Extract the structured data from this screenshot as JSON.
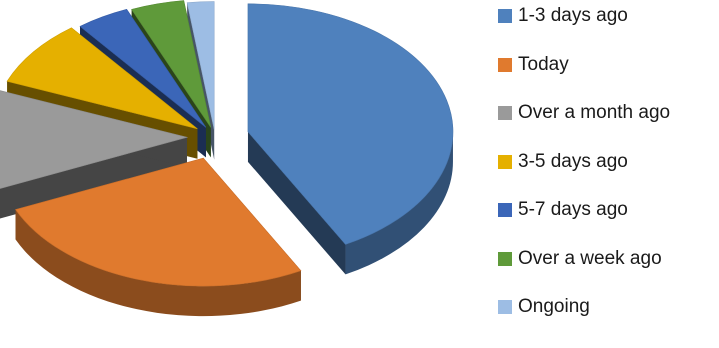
{
  "chart_data": {
    "type": "pie",
    "style": "3d-exploded",
    "categories": [
      "1-3 days ago",
      "Today",
      "Over a month ago",
      "3-5 days ago",
      "5-7 days ago",
      "Over a week ago",
      "Ongoing"
    ],
    "values": [
      40,
      25,
      12,
      8,
      4,
      4,
      2
    ],
    "unit": "percent",
    "colors": [
      "#4f81bd",
      "#e07a2e",
      "#9a9a9a",
      "#e5b000",
      "#3b66b8",
      "#5f9a3a",
      "#9dbde4"
    ],
    "legend_placement": "right",
    "title": ""
  }
}
